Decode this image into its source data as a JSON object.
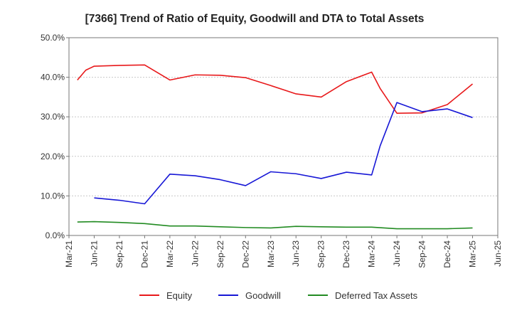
{
  "chart_data": {
    "type": "line",
    "title": "[7366]  Trend of Ratio of Equity, Goodwill and DTA to Total Assets",
    "xlabel": "",
    "ylabel": "",
    "x_ticks": [
      "Mar-21",
      "Jun-21",
      "Sep-21",
      "Dec-21",
      "Mar-22",
      "Jun-22",
      "Sep-22",
      "Dec-22",
      "Mar-23",
      "Jun-23",
      "Sep-23",
      "Dec-23",
      "Mar-24",
      "Jun-24",
      "Sep-24",
      "Dec-24",
      "Mar-25",
      "Jun-25"
    ],
    "x_range": [
      "2021-03",
      "2025-06"
    ],
    "y_ticks": [
      "0.0%",
      "10.0%",
      "20.0%",
      "30.0%",
      "40.0%",
      "50.0%"
    ],
    "ylim": [
      0,
      50
    ],
    "grid": "horizontal",
    "legend_position": "bottom",
    "series": [
      {
        "name": "Equity",
        "color": "#e8191b",
        "points": [
          [
            "2021-04",
            39.3
          ],
          [
            "2021-05",
            41.8
          ],
          [
            "2021-06",
            42.8
          ],
          [
            "2021-09",
            43.0
          ],
          [
            "2021-12",
            43.1
          ],
          [
            "2022-03",
            39.3
          ],
          [
            "2022-06",
            40.6
          ],
          [
            "2022-09",
            40.5
          ],
          [
            "2022-12",
            39.9
          ],
          [
            "2023-03",
            37.9
          ],
          [
            "2023-06",
            35.8
          ],
          [
            "2023-09",
            35.0
          ],
          [
            "2023-12",
            38.9
          ],
          [
            "2024-03",
            41.3
          ],
          [
            "2024-04",
            37.2
          ],
          [
            "2024-06",
            30.9
          ],
          [
            "2024-09",
            31.0
          ],
          [
            "2024-12",
            33.1
          ],
          [
            "2025-03",
            38.3
          ]
        ]
      },
      {
        "name": "Goodwill",
        "color": "#1717d6",
        "points": [
          [
            "2021-06",
            9.5
          ],
          [
            "2021-09",
            8.9
          ],
          [
            "2021-12",
            8.0
          ],
          [
            "2022-03",
            15.5
          ],
          [
            "2022-06",
            15.1
          ],
          [
            "2022-09",
            14.1
          ],
          [
            "2022-12",
            12.6
          ],
          [
            "2023-03",
            16.1
          ],
          [
            "2023-06",
            15.6
          ],
          [
            "2023-09",
            14.4
          ],
          [
            "2023-12",
            16.0
          ],
          [
            "2024-03",
            15.3
          ],
          [
            "2024-04",
            22.6
          ],
          [
            "2024-06",
            33.6
          ],
          [
            "2024-09",
            31.3
          ],
          [
            "2024-12",
            32.0
          ],
          [
            "2025-03",
            29.8
          ]
        ]
      },
      {
        "name": "Deferred Tax Assets",
        "color": "#228b22",
        "points": [
          [
            "2021-04",
            3.4
          ],
          [
            "2021-06",
            3.5
          ],
          [
            "2021-09",
            3.3
          ],
          [
            "2021-12",
            3.0
          ],
          [
            "2022-03",
            2.4
          ],
          [
            "2022-06",
            2.4
          ],
          [
            "2022-09",
            2.2
          ],
          [
            "2022-12",
            2.0
          ],
          [
            "2023-03",
            1.9
          ],
          [
            "2023-06",
            2.3
          ],
          [
            "2023-09",
            2.2
          ],
          [
            "2023-12",
            2.1
          ],
          [
            "2024-03",
            2.1
          ],
          [
            "2024-06",
            1.7
          ],
          [
            "2024-09",
            1.7
          ],
          [
            "2024-12",
            1.7
          ],
          [
            "2025-03",
            1.9
          ]
        ]
      }
    ]
  }
}
